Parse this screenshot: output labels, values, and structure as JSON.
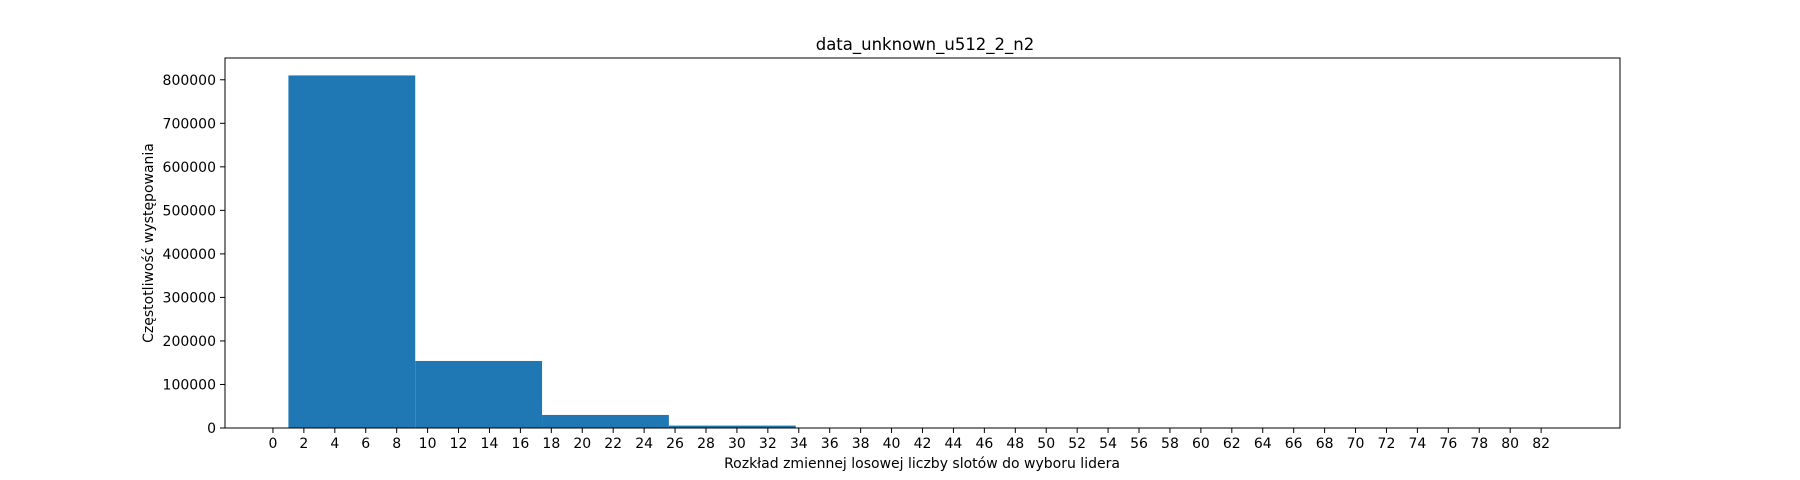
{
  "chart_data": {
    "type": "bar",
    "title": "data_unknown_u512_2_n2",
    "xlabel": "Rozkład zmiennej losowej liczby slotów do wyboru lidera",
    "ylabel": "Częstotliwość występowania",
    "bins": [
      {
        "x0": 1.0,
        "x1": 9.2,
        "value": 810000
      },
      {
        "x0": 9.2,
        "x1": 17.4,
        "value": 154000
      },
      {
        "x0": 17.4,
        "x1": 25.6,
        "value": 30000
      },
      {
        "x0": 25.6,
        "x1": 33.8,
        "value": 5500
      },
      {
        "x0": 33.8,
        "x1": 42.0,
        "value": 1000
      },
      {
        "x0": 42.0,
        "x1": 50.2,
        "value": 200
      },
      {
        "x0": 50.2,
        "x1": 58.4,
        "value": 40
      },
      {
        "x0": 58.4,
        "x1": 66.6,
        "value": 8
      },
      {
        "x0": 66.6,
        "x1": 74.8,
        "value": 2
      },
      {
        "x0": 74.8,
        "x1": 83.0,
        "value": 1
      }
    ],
    "xlim": [
      -3.1,
      87.1
    ],
    "ylim": [
      0,
      850000
    ],
    "xticks": [
      0,
      2,
      4,
      6,
      8,
      10,
      12,
      14,
      16,
      18,
      20,
      22,
      24,
      26,
      28,
      30,
      32,
      34,
      36,
      38,
      40,
      42,
      44,
      46,
      48,
      50,
      52,
      54,
      56,
      58,
      60,
      62,
      64,
      66,
      68,
      70,
      72,
      74,
      76,
      78,
      80,
      82
    ],
    "yticks": [
      0,
      100000,
      200000,
      300000,
      400000,
      500000,
      600000,
      700000,
      800000
    ],
    "bar_color": "#1f77b4",
    "grid": false,
    "legend": "none"
  }
}
